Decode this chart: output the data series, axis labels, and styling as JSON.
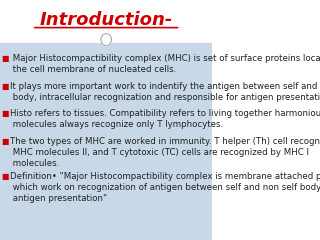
{
  "title": "Introduction-",
  "title_color": "#cc0000",
  "title_fontsize": 13,
  "title_underline": true,
  "bg_top": "#ffffff",
  "bg_bottom": "#c8d8e8",
  "bullet_color": "#cc0000",
  "text_color": "#222222",
  "bullet_fontsize": 6.2,
  "bullets": [
    " Major Histocompactibility complex (MHC) is set of surface proteins located on\n the cell membrane of nucleated cells.",
    "It plays more important work to indentify the antigen between self and non self\n body, intracellular recognization and responsible for antigen presentation.",
    "Histo refers to tissues. Compatibility refers to living together harmoniously.MHC\n molecules always recognize only T lymphocytes.",
    "The two types of MHC are worked in immunity. T helper (Th) cell recognized by\n MHC molecules II, and T cytotoxic (TC) cells are recognized by MHC I\n molecules.",
    "Definition• \"Major Histocompactibility complex is membrane attached protein\n which work on recognization of antigen between self and non self body and\n antigen presentation\""
  ]
}
